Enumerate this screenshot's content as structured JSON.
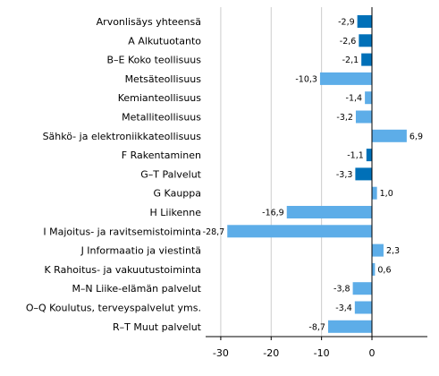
{
  "chart_data": {
    "type": "bar",
    "orientation": "horizontal",
    "title": "",
    "xlabel": "",
    "ylabel": "",
    "categories": [
      "Arvonlisäys yhteensä",
      "A Alkutuotanto",
      "B–E Koko teollisuus",
      "Metsäteollisuus",
      "Kemianteollisuus",
      "Metalliteollisuus",
      "Sähkö- ja elektroniikkateollisuus",
      "F Rakentaminen",
      "G–T Palvelut",
      "G Kauppa",
      "H Liikenne",
      "I Majoitus- ja ravitsemistoiminta",
      "J Informaatio ja viestintä",
      "K Rahoitus- ja vakuutustoiminta",
      "M–N Liike-elämän palvelut",
      "O–Q Koulutus, terveyspalvelut yms.",
      "R–T Muut palvelut"
    ],
    "values": [
      -2.9,
      -2.6,
      -2.1,
      -10.3,
      -1.4,
      -3.2,
      6.9,
      -1.1,
      -3.3,
      1.0,
      -16.9,
      -28.7,
      2.3,
      0.6,
      -3.8,
      -3.4,
      -8.7
    ],
    "value_labels": [
      "-2,9",
      "-2,6",
      "-2,1",
      "-10,3",
      "-1,4",
      "-3,2",
      "6,9",
      "-1,1",
      "-3,3",
      "1,0",
      "-16,9",
      "-28,7",
      "2,3",
      "0,6",
      "-3,8",
      "-3,4",
      "-8,7"
    ],
    "highlight": [
      true,
      true,
      true,
      false,
      false,
      false,
      false,
      true,
      true,
      false,
      false,
      false,
      false,
      false,
      false,
      false,
      false
    ],
    "xlim": [
      -33,
      11
    ],
    "xticks": [
      -30,
      -20,
      -10,
      0
    ],
    "xtick_labels": [
      "-30",
      "-20",
      "-10",
      "0"
    ],
    "grid": true,
    "legend": "none",
    "colors": {
      "main": "#0070b8",
      "sub": "#5dade8",
      "grid": "#cccccc",
      "axis": "#000000"
    }
  }
}
